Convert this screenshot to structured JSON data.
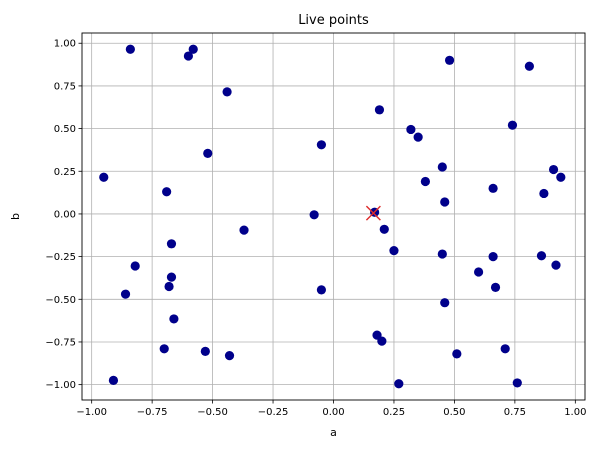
{
  "chart_data": {
    "type": "scatter",
    "title": "Live points",
    "xlabel": "a",
    "ylabel": "b",
    "xlim": [
      -1.04,
      1.04
    ],
    "ylim": [
      -1.09,
      1.06
    ],
    "x_ticks": [
      -1.0,
      -0.75,
      -0.5,
      -0.25,
      0.0,
      0.25,
      0.5,
      0.75,
      1.0
    ],
    "x_tick_labels": [
      "−1.00",
      "−0.75",
      "−0.50",
      "−0.25",
      "0.00",
      "0.25",
      "0.50",
      "0.75",
      "1.00"
    ],
    "y_ticks": [
      -1.0,
      -0.75,
      -0.5,
      -0.25,
      0.0,
      0.25,
      0.5,
      0.75,
      1.0
    ],
    "y_tick_labels": [
      "−1.00",
      "−0.75",
      "−0.50",
      "−0.25",
      "0.00",
      "0.25",
      "0.50",
      "0.75",
      "1.00"
    ],
    "grid": true,
    "series": [
      {
        "marker": "circle",
        "color": "#00008b",
        "points": [
          [
            -0.84,
            0.965
          ],
          [
            -0.58,
            0.965
          ],
          [
            -0.6,
            0.925
          ],
          [
            -0.44,
            0.715
          ],
          [
            -0.95,
            0.215
          ],
          [
            -0.52,
            0.355
          ],
          [
            -0.69,
            0.13
          ],
          [
            -0.05,
            0.405
          ],
          [
            -0.37,
            -0.095
          ],
          [
            -0.67,
            -0.175
          ],
          [
            -0.82,
            -0.305
          ],
          [
            -0.67,
            -0.37
          ],
          [
            -0.68,
            -0.425
          ],
          [
            -0.86,
            -0.47
          ],
          [
            -0.66,
            -0.615
          ],
          [
            -0.7,
            -0.79
          ],
          [
            -0.53,
            -0.805
          ],
          [
            -0.43,
            -0.83
          ],
          [
            -0.91,
            -0.975
          ],
          [
            -0.08,
            -0.005
          ],
          [
            -0.05,
            -0.445
          ],
          [
            0.19,
            0.61
          ],
          [
            0.48,
            0.9
          ],
          [
            0.81,
            0.865
          ],
          [
            0.32,
            0.495
          ],
          [
            0.35,
            0.45
          ],
          [
            0.74,
            0.52
          ],
          [
            0.45,
            0.275
          ],
          [
            0.38,
            0.19
          ],
          [
            0.46,
            0.07
          ],
          [
            0.66,
            0.15
          ],
          [
            0.91,
            0.26
          ],
          [
            0.94,
            0.215
          ],
          [
            0.87,
            0.12
          ],
          [
            0.17,
            0.01
          ],
          [
            0.21,
            -0.09
          ],
          [
            0.25,
            -0.215
          ],
          [
            0.45,
            -0.235
          ],
          [
            0.66,
            -0.25
          ],
          [
            0.86,
            -0.245
          ],
          [
            0.92,
            -0.3
          ],
          [
            0.6,
            -0.34
          ],
          [
            0.67,
            -0.43
          ],
          [
            0.46,
            -0.52
          ],
          [
            0.18,
            -0.71
          ],
          [
            0.2,
            -0.745
          ],
          [
            0.51,
            -0.82
          ],
          [
            0.71,
            -0.79
          ],
          [
            0.27,
            -0.995
          ],
          [
            0.76,
            -0.99
          ]
        ]
      },
      {
        "marker": "x",
        "color": "#dd2a2a",
        "points": [
          [
            0.165,
            0.005
          ]
        ]
      }
    ]
  }
}
